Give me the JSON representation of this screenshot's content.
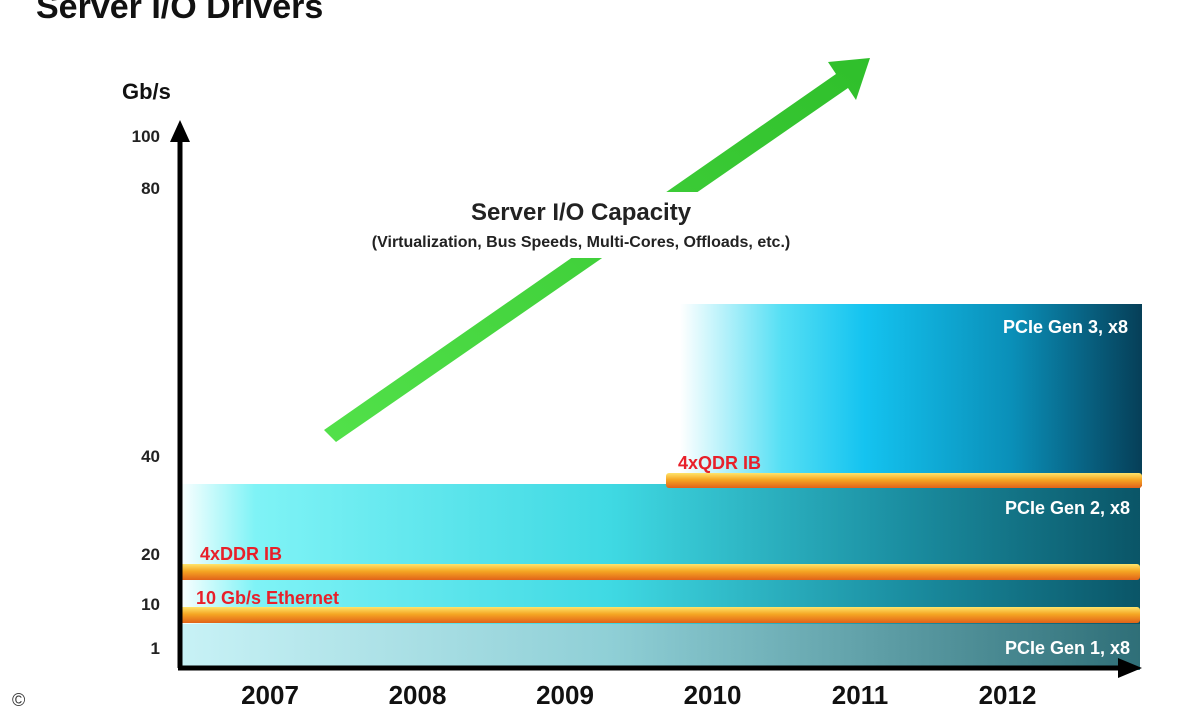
{
  "chart_data": {
    "type": "area",
    "title": "Server I/O Drivers",
    "ylabel": "Gb/s",
    "y_ticks": [
      "1",
      "10",
      "20",
      "40",
      "80",
      "100"
    ],
    "categories": [
      "2007",
      "2008",
      "2009",
      "2010",
      "2011",
      "2012"
    ],
    "bands": [
      {
        "name": "PCIe Gen 1, x8",
        "value_gbps": 8,
        "start": "2007",
        "end": "2012"
      },
      {
        "name": "PCIe Gen 2, x8",
        "value_gbps": 32,
        "start": "2007",
        "end": "2012"
      },
      {
        "name": "PCIe Gen 3, x8",
        "value_gbps": 64,
        "start": "2010",
        "end": "2012"
      }
    ],
    "lines": [
      {
        "name": "10 Gb/s Ethernet",
        "value_gbps": 10,
        "start": "2007",
        "end": "2012"
      },
      {
        "name": "4xDDR IB",
        "value_gbps": 20,
        "start": "2007",
        "end": "2012"
      },
      {
        "name": "4xQDR IB",
        "value_gbps": 40,
        "start": "2010",
        "end": "2012"
      }
    ],
    "annotations": {
      "capacity_title": "Server I/O Capacity",
      "capacity_subtitle": "(Virtualization, Bus Speeds, Multi-Cores, Offloads, etc.)"
    },
    "colors": {
      "arrow": "#4cd636",
      "line_orange": "#f5a623",
      "line_label": "#e8202a",
      "band_cyan": "#35e6f0",
      "band_dark": "#0b5a6e"
    }
  },
  "corner_mark": "©"
}
